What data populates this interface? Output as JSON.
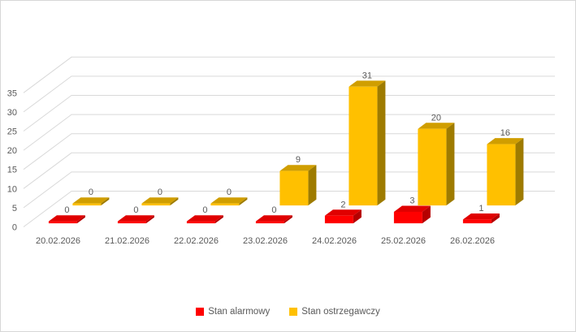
{
  "chart_data": {
    "type": "bar",
    "variant": "3d-column",
    "title": "",
    "xlabel": "",
    "ylabel": "",
    "categories": [
      "20.02.2026",
      "21.02.2026",
      "22.02.2026",
      "23.02.2026",
      "24.02.2026",
      "25.02.2026",
      "26.02.2026"
    ],
    "series": [
      {
        "name": "Stan alarmowy",
        "values": [
          0,
          0,
          0,
          0,
          2,
          3,
          1
        ],
        "color": "#FF0000",
        "color_top": "#E00000",
        "color_side": "#B50000"
      },
      {
        "name": "Stan ostrzegawczy",
        "values": [
          0,
          0,
          0,
          9,
          31,
          20,
          16
        ],
        "color": "#FFC000",
        "color_top": "#D09E00",
        "color_side": "#9E7B00"
      }
    ],
    "y_ticks": [
      0,
      5,
      10,
      15,
      20,
      25,
      30,
      35
    ],
    "ylim": [
      0,
      35
    ],
    "grid": true,
    "data_labels": true,
    "legend_position": "bottom",
    "text_color": "#595959",
    "grid_color": "#D9D9D9",
    "frame_border_color": "#D7D7D7"
  }
}
